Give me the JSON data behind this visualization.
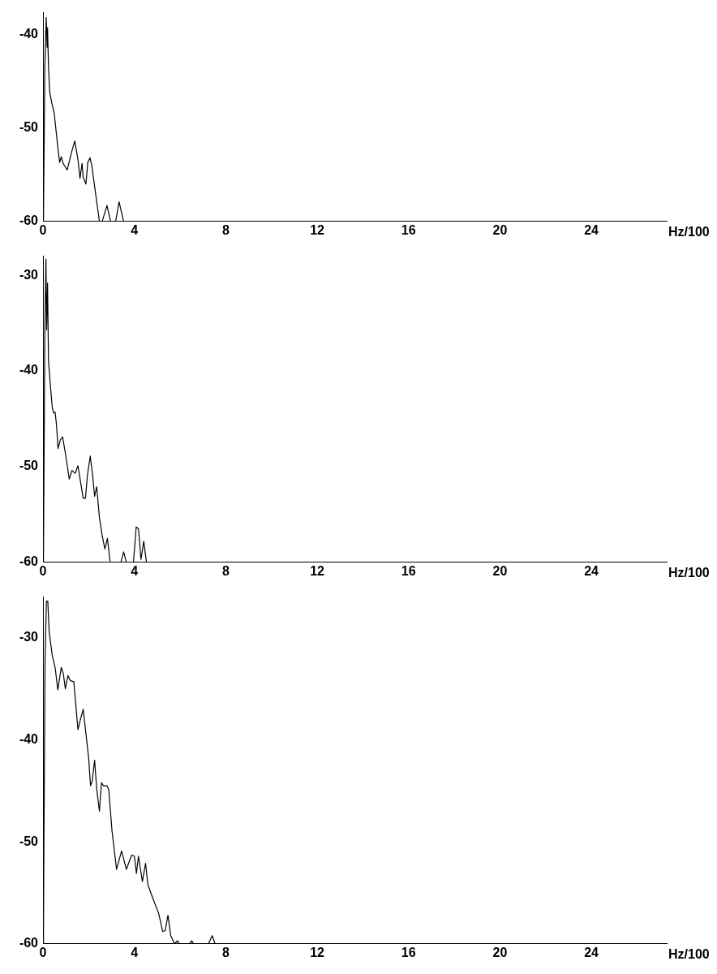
{
  "chart_data": [
    {
      "type": "line",
      "xlabel": "Hz/100",
      "color": "#000000",
      "marker": "none",
      "line_style": "solid",
      "xlim": [
        0,
        27.3
      ],
      "xticks": [
        0,
        4,
        8,
        12,
        16,
        20,
        24
      ],
      "ylim": [
        -60,
        -37.7
      ],
      "yticks": [
        -60,
        -50,
        -40
      ],
      "x": [
        0.02,
        0.04,
        0.08,
        0.14,
        0.18,
        0.2,
        0.24,
        0.29,
        0.38,
        0.49,
        0.65,
        0.73,
        0.8,
        0.88,
        1.06,
        1.24,
        1.39,
        1.53,
        1.62,
        1.71,
        1.76,
        1.88,
        1.96,
        2.06,
        2.14,
        2.29,
        2.47,
        2.59,
        2.8,
        2.96,
        3.18,
        3.33,
        3.53,
        27.3
      ],
      "values": [
        -60,
        -54.6,
        -43.7,
        -38.2,
        -41.4,
        -39.3,
        -43.4,
        -46.1,
        -47.3,
        -48.4,
        -52.1,
        -53.7,
        -53.1,
        -53.8,
        -54.5,
        -52.7,
        -51.4,
        -53.4,
        -55.4,
        -53.8,
        -55.3,
        -56,
        -53.7,
        -53.2,
        -54.1,
        -56.8,
        -60,
        -60,
        -58.3,
        -60,
        -60,
        -57.9,
        -60,
        -60
      ]
    },
    {
      "type": "line",
      "xlabel": "Hz/100",
      "color": "#000000",
      "marker": "none",
      "line_style": "solid",
      "xlim": [
        0,
        27.3
      ],
      "xticks": [
        0,
        4,
        8,
        12,
        16,
        20,
        24
      ],
      "ylim": [
        -60,
        -28
      ],
      "yticks": [
        -60,
        -50,
        -40,
        -30
      ],
      "x": [
        0.02,
        0.04,
        0.08,
        0.13,
        0.16,
        0.2,
        0.24,
        0.33,
        0.41,
        0.47,
        0.53,
        0.59,
        0.66,
        0.76,
        0.86,
        1.0,
        1.15,
        1.27,
        1.41,
        1.53,
        1.65,
        1.76,
        1.86,
        1.94,
        2.07,
        2.18,
        2.26,
        2.35,
        2.47,
        2.59,
        2.71,
        2.82,
        2.94,
        3.41,
        3.53,
        3.65,
        3.96,
        4.08,
        4.18,
        4.29,
        4.41,
        4.53,
        27.3
      ],
      "values": [
        -60,
        -52.1,
        -36.4,
        -28.3,
        -35.7,
        -30.8,
        -38.9,
        -41.7,
        -43.9,
        -44.4,
        -44.3,
        -45.6,
        -48.1,
        -47.2,
        -46.9,
        -48.9,
        -51.3,
        -50.4,
        -50.7,
        -49.9,
        -51.7,
        -53.3,
        -53.3,
        -51,
        -48.9,
        -51.1,
        -53.1,
        -52.1,
        -55.3,
        -57.2,
        -58.6,
        -57.5,
        -60,
        -60,
        -58.9,
        -60,
        -60,
        -56.3,
        -56.5,
        -59.7,
        -57.8,
        -60,
        -60
      ]
    },
    {
      "type": "line",
      "xlabel": "Hz/100",
      "color": "#000000",
      "marker": "none",
      "line_style": "solid",
      "xlim": [
        0,
        27.3
      ],
      "xticks": [
        0,
        4,
        8,
        12,
        16,
        20,
        24
      ],
      "ylim": [
        -60,
        -26
      ],
      "yticks": [
        -60,
        -50,
        -40,
        -30
      ],
      "x": [
        0.02,
        0.04,
        0.09,
        0.15,
        0.21,
        0.27,
        0.41,
        0.53,
        0.65,
        0.8,
        0.89,
        0.98,
        1.09,
        1.2,
        1.35,
        1.53,
        1.65,
        1.76,
        2.0,
        2.08,
        2.15,
        2.26,
        2.35,
        2.47,
        2.56,
        2.65,
        2.8,
        2.88,
        3.02,
        3.22,
        3.44,
        3.65,
        3.88,
        4.0,
        4.09,
        4.18,
        4.35,
        4.49,
        4.59,
        4.82,
        5.06,
        5.24,
        5.35,
        5.47,
        5.59,
        5.76,
        5.88,
        5.98,
        6.41,
        6.51,
        6.59,
        7.24,
        7.41,
        7.53,
        27.3
      ],
      "values": [
        -60,
        -50.7,
        -32.2,
        -26.4,
        -26.4,
        -29.4,
        -31.8,
        -32.9,
        -35.1,
        -32.9,
        -33.5,
        -35,
        -33.7,
        -34.2,
        -34.3,
        -39,
        -37.9,
        -37,
        -41.8,
        -44.5,
        -44.1,
        -42,
        -44.8,
        -47,
        -44.2,
        -44.5,
        -44.5,
        -44.9,
        -48.9,
        -52.7,
        -50.9,
        -52.7,
        -51.3,
        -51.4,
        -53.1,
        -51.4,
        -53.9,
        -52.1,
        -54.2,
        -55.6,
        -57,
        -58.8,
        -58.7,
        -57.2,
        -59.2,
        -60,
        -59.7,
        -60,
        -60,
        -59.7,
        -60,
        -60,
        -59.2,
        -60,
        -60
      ]
    }
  ]
}
